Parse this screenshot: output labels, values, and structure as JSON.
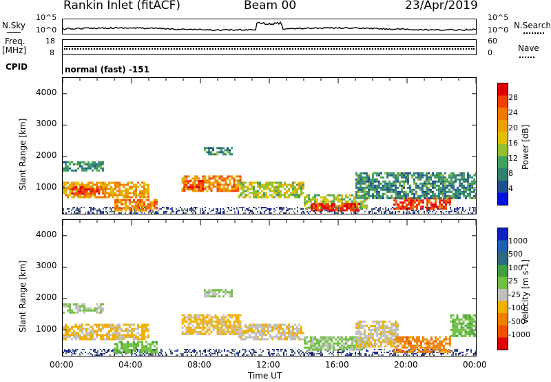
{
  "header": {
    "station": "Rankin Inlet (fitACF)",
    "beam": "Beam 00",
    "date": "23/Apr/2019"
  },
  "noise_panel": {
    "left_label": "N.Sky",
    "right_label": "N.Search",
    "left_ticks": [
      "10^5",
      "10^0"
    ],
    "right_ticks": [
      "10^5",
      "10^0"
    ]
  },
  "freq_panel": {
    "left_label_line1": "Freq.",
    "left_label_line2": "[MHz]",
    "right_label": "Nave",
    "left_ticks": [
      "18",
      "8"
    ],
    "right_ticks": [
      "60",
      "0"
    ]
  },
  "cpid_panel": {
    "label": "CPID",
    "value": "normal (fast) -151"
  },
  "x_axis": {
    "label": "Time UT",
    "ticks": [
      "00:00",
      "04:00",
      "08:00",
      "12:00",
      "16:00",
      "20:00",
      "00:00"
    ]
  },
  "chart_data": [
    {
      "type": "heatmap",
      "panel": "power",
      "ylabel": "Slant Range [km]",
      "yticks": [
        "4000",
        "3000",
        "2000",
        "1000"
      ],
      "ylim": [
        180,
        4500
      ],
      "xlim_hours": [
        0,
        24
      ],
      "colorbar_label": "Power [dB]",
      "colorbar_ticks": [
        "28",
        "24",
        "20",
        "16",
        "12",
        "8",
        "4"
      ],
      "colorbar_colors": [
        "#e00000",
        "#f04000",
        "#f07800",
        "#f0a000",
        "#e0c000",
        "#90c030",
        "#40a060",
        "#308070",
        "#205090",
        "#0010e0"
      ],
      "echo_bands": [
        {
          "t0": 0.0,
          "t1": 5.0,
          "r0": 700,
          "r1": 1200,
          "level": 20
        },
        {
          "t0": 0.5,
          "t1": 2.5,
          "r0": 800,
          "r1": 1050,
          "level": 26
        },
        {
          "t0": 0.0,
          "t1": 2.3,
          "r0": 1550,
          "r1": 1850,
          "level": 10
        },
        {
          "t0": 6.9,
          "t1": 10.3,
          "r0": 900,
          "r1": 1400,
          "level": 22
        },
        {
          "t0": 7.0,
          "t1": 8.2,
          "r0": 950,
          "r1": 1250,
          "level": 26
        },
        {
          "t0": 10.2,
          "t1": 14.0,
          "r0": 700,
          "r1": 1200,
          "level": 16
        },
        {
          "t0": 14.0,
          "t1": 17.6,
          "r0": 350,
          "r1": 800,
          "level": 15
        },
        {
          "t0": 14.4,
          "t1": 17.2,
          "r0": 320,
          "r1": 520,
          "level": 27
        },
        {
          "t0": 19.2,
          "t1": 22.5,
          "r0": 350,
          "r1": 700,
          "level": 26
        },
        {
          "t0": 17.0,
          "t1": 24.0,
          "r0": 700,
          "r1": 1500,
          "level": 10
        },
        {
          "t0": 3.0,
          "t1": 5.5,
          "r0": 300,
          "r1": 650,
          "level": 22
        },
        {
          "t0": 8.2,
          "t1": 9.8,
          "r0": 2050,
          "r1": 2300,
          "level": 10
        }
      ]
    },
    {
      "type": "heatmap",
      "panel": "velocity",
      "ylabel": "Slant Range [km]",
      "yticks": [
        "4000",
        "3000",
        "2000",
        "1000"
      ],
      "ylim": [
        180,
        4500
      ],
      "xlim_hours": [
        0,
        24
      ],
      "colorbar_label": "Velocity [m s-1]",
      "colorbar_ticks": [
        "1000",
        "500",
        "100",
        "25",
        "-25",
        "-100",
        "-500",
        "-1000"
      ],
      "colorbar_colors": [
        "#1020c0",
        "#2060b0",
        "#306880",
        "#40a040",
        "#70c040",
        "#c0c0c0",
        "#f0b000",
        "#f08000",
        "#f05000",
        "#e00000"
      ],
      "echo_bands": [
        {
          "t0": 0.0,
          "t1": 5.0,
          "r0": 700,
          "r1": 1200,
          "level": -300
        },
        {
          "t0": 0.0,
          "t1": 2.3,
          "r0": 1550,
          "r1": 1850,
          "level": 0
        },
        {
          "t0": 6.9,
          "t1": 10.3,
          "r0": 900,
          "r1": 1500,
          "level": -300
        },
        {
          "t0": 10.2,
          "t1": 14.0,
          "r0": 700,
          "r1": 1200,
          "level": -200
        },
        {
          "t0": 14.0,
          "t1": 17.6,
          "r0": 350,
          "r1": 800,
          "level": 50
        },
        {
          "t0": 17.0,
          "t1": 19.5,
          "r0": 500,
          "r1": 1300,
          "level": -200
        },
        {
          "t0": 19.2,
          "t1": 22.5,
          "r0": 300,
          "r1": 800,
          "level": -600
        },
        {
          "t0": 22.5,
          "t1": 24.0,
          "r0": 800,
          "r1": 1500,
          "level": 150
        },
        {
          "t0": 3.0,
          "t1": 5.5,
          "r0": 300,
          "r1": 650,
          "level": 150
        },
        {
          "t0": 8.2,
          "t1": 9.8,
          "r0": 2050,
          "r1": 2300,
          "level": 0
        }
      ]
    }
  ]
}
